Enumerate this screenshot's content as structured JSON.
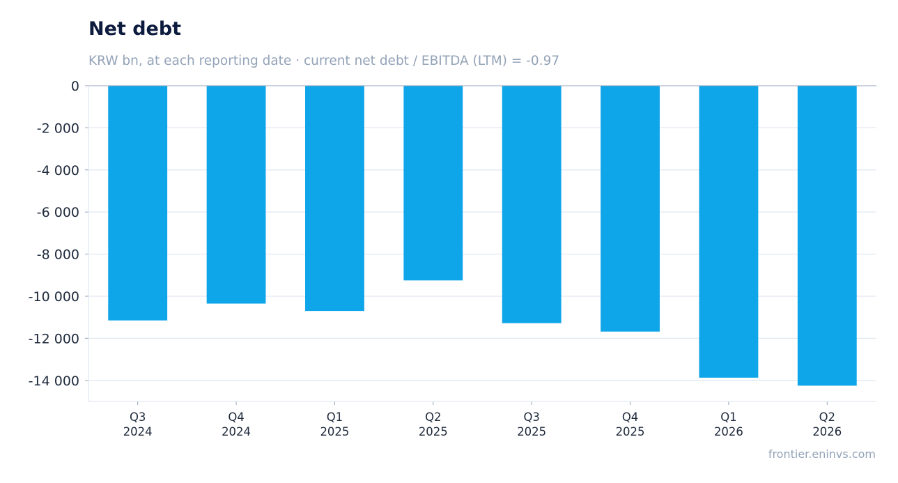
{
  "chart_data": {
    "type": "bar",
    "title": "Net debt",
    "subtitle": "KRW bn, at each reporting date · current net debt / EBITDA (LTM) = -0.97",
    "categories": [
      [
        "Q3",
        "2024"
      ],
      [
        "Q4",
        "2024"
      ],
      [
        "Q1",
        "2025"
      ],
      [
        "Q2",
        "2025"
      ],
      [
        "Q3",
        "2025"
      ],
      [
        "Q4",
        "2025"
      ],
      [
        "Q1",
        "2026"
      ],
      [
        "Q2",
        "2026"
      ]
    ],
    "values": [
      -11150,
      -10350,
      -10700,
      -9250,
      -11280,
      -11680,
      -13870,
      -14250
    ],
    "ylim": [
      -15000,
      0
    ],
    "yticks": [
      0,
      -2000,
      -4000,
      -6000,
      -8000,
      -10000,
      -12000,
      -14000
    ],
    "ytick_labels": [
      "0",
      "-2 000",
      "-4 000",
      "-6 000",
      "-8 000",
      "-10 000",
      "-12 000",
      "-14 000"
    ],
    "grid": true,
    "bar_color": "#0ea5e9"
  },
  "footer": "frontier.eninvs.com"
}
